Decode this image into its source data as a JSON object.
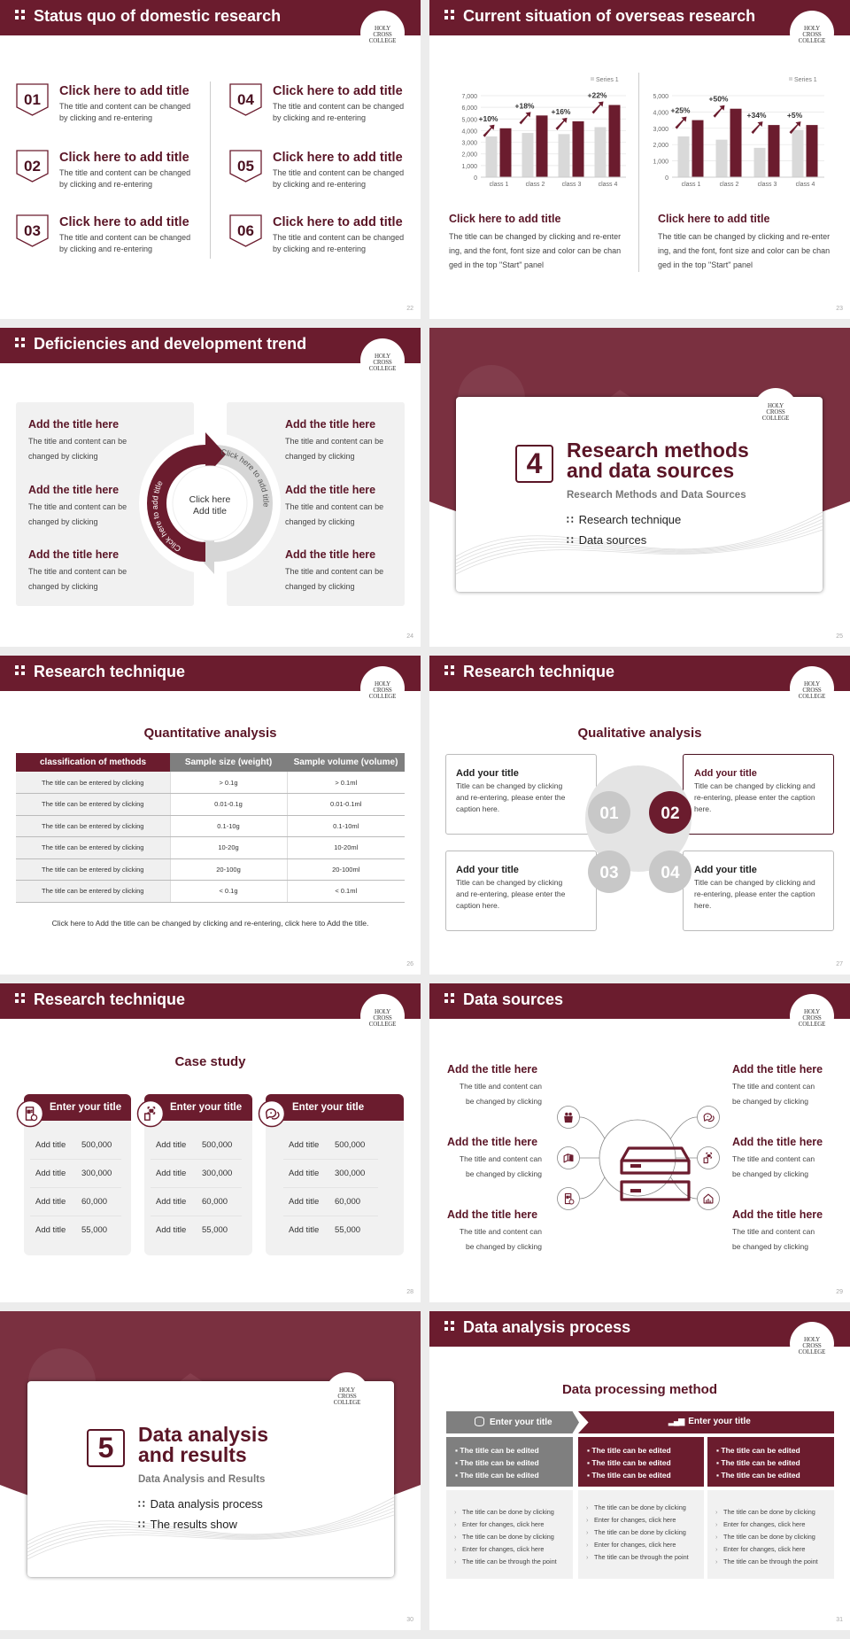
{
  "colors": {
    "maroon": "#6b1c2e",
    "gray": "#7f7f7f",
    "light_gray": "#d9d9d9",
    "panel": "#f1f1f1"
  },
  "logo": {
    "text": "HOLY CROSS COLLEGE"
  },
  "s22": {
    "title": "Status quo of domestic research",
    "page": "22",
    "items": [
      {
        "num": "01",
        "title": "Click here to add title",
        "text": "The title and content can be changed by clicking and re-entering"
      },
      {
        "num": "02",
        "title": "Click here to add title",
        "text": "The title and content can be changed by clicking and re-entering"
      },
      {
        "num": "03",
        "title": "Click here to add title",
        "text": "The title and content can be changed by clicking and re-entering"
      },
      {
        "num": "04",
        "title": "Click here to add title",
        "text": "The title and content can be changed by clicking and re-entering"
      },
      {
        "num": "05",
        "title": "Click here to add title",
        "text": "The title and content can be changed by clicking and re-entering"
      },
      {
        "num": "06",
        "title": "Click here to add title",
        "text": "The title and content can be changed by clicking and re-entering"
      }
    ]
  },
  "s23": {
    "title": "Current situation of overseas research",
    "page": "23",
    "panels": [
      {
        "title": "Click here to add title",
        "text": "The title can be changed by clicking and re-entering, and the font, font size and color can be changed in the top \"Start\" panel"
      },
      {
        "title": "Click here to add title",
        "text": "The title can be changed by clicking and re-entering, and the font, font size and color can be changed in the top \"Start\" panel"
      }
    ]
  },
  "chart_data": [
    {
      "type": "bar",
      "categories": [
        "class 1",
        "class 2",
        "class 3",
        "class 4"
      ],
      "ylim": [
        0,
        7000
      ],
      "yticks": [
        "0",
        "1,000",
        "2,000",
        "3,000",
        "4,000",
        "5,000",
        "6,000",
        "7,000"
      ],
      "ytick_values": [
        0,
        1000,
        2000,
        3000,
        4000,
        5000,
        6000,
        7000
      ],
      "legend": "top-right",
      "grid": true,
      "series": [
        {
          "name": "Series 1",
          "color": "#d9d9d9",
          "values": [
            3500,
            3800,
            3700,
            4300
          ]
        },
        {
          "color": "#6b1c2e",
          "values": [
            4200,
            5300,
            4800,
            6200
          ]
        }
      ],
      "annotations": [
        "+10%",
        "+18%",
        "+16%",
        "+22%"
      ]
    },
    {
      "type": "bar",
      "categories": [
        "class 1",
        "class 2",
        "class 3",
        "class 4"
      ],
      "ylim": [
        0,
        5000
      ],
      "yticks": [
        "0",
        "1,000",
        "2,000",
        "3,000",
        "4,000",
        "5,000"
      ],
      "ytick_values": [
        0,
        1000,
        2000,
        3000,
        4000,
        5000
      ],
      "legend": "top-right",
      "grid": true,
      "series": [
        {
          "name": "Series 1",
          "color": "#d9d9d9",
          "values": [
            2500,
            2300,
            1800,
            2900
          ]
        },
        {
          "color": "#6b1c2e",
          "values": [
            3500,
            4200,
            3200,
            3200
          ]
        }
      ],
      "annotations": [
        "+25%",
        "+50%",
        "+34%",
        "+5%"
      ]
    }
  ],
  "s24": {
    "title": "Deficiencies and development trend",
    "page": "24",
    "items": [
      {
        "title": "Add the title here",
        "text": "The title and content can be changed by clicking"
      },
      {
        "title": "Add the title here",
        "text": "The title and content can be changed by clicking"
      },
      {
        "title": "Add the title here",
        "text": "The title and content can be changed by clicking"
      },
      {
        "title": "Add the title here",
        "text": "The title and content can be changed by clicking"
      },
      {
        "title": "Add the title here",
        "text": "The title and content can be changed by clicking"
      },
      {
        "title": "Add the title here",
        "text": "The title and content can be changed by clicking"
      }
    ],
    "arc_left": "Click here to add title",
    "arc_right": "Click here to add title",
    "center": [
      "Click here",
      "Add title"
    ]
  },
  "s25": {
    "num": "4",
    "title": [
      "Research methods",
      "and data sources"
    ],
    "subtitle": "Research Methods and Data Sources",
    "bullets": [
      "Research technique",
      "Data sources"
    ],
    "page": "25"
  },
  "s26": {
    "title": "Research technique",
    "page": "26",
    "heading": "Quantitative analysis",
    "columns": [
      "classification of methods",
      "Sample size (weight)",
      "Sample volume (volume)"
    ],
    "rows": [
      [
        "The title can be entered by clicking",
        "> 0.1g",
        "> 0.1ml"
      ],
      [
        "The title can be entered by clicking",
        "0.01-0.1g",
        "0.01-0.1ml"
      ],
      [
        "The title can be entered by clicking",
        "0.1-10g",
        "0.1-10ml"
      ],
      [
        "The title can be entered by clicking",
        "10-20g",
        "10-20ml"
      ],
      [
        "The title can be entered by clicking",
        "20-100g",
        "20-100ml"
      ],
      [
        "The title can be entered by clicking",
        "< 0.1g",
        "< 0.1ml"
      ]
    ],
    "caption": "Click here to Add the title can be changed by clicking and re-entering, click here to Add the title."
  },
  "s27": {
    "title": "Research technique",
    "page": "27",
    "heading": "Qualitative analysis",
    "boxes": [
      {
        "num": "01",
        "title": "Add your title",
        "text": "Title can be changed by clicking and re-entering, please enter the caption here."
      },
      {
        "num": "02",
        "title": "Add your title",
        "text": "Title can be changed by clicking and re-entering, please enter the caption here."
      },
      {
        "num": "03",
        "title": "Add your title",
        "text": "Title can be changed by clicking and re-entering, please enter the caption here."
      },
      {
        "num": "04",
        "title": "Add your title",
        "text": "Title can be changed by clicking and re-entering, please enter the caption here."
      }
    ]
  },
  "s28": {
    "title": "Research technique",
    "page": "28",
    "heading": "Case study",
    "cards": [
      {
        "icon": "phone-contact-icon",
        "title": "Enter your title",
        "rows": [
          [
            "Add title",
            "500,000"
          ],
          [
            "Add title",
            "300,000"
          ],
          [
            "Add title",
            "60,000"
          ],
          [
            "Add title",
            "55,000"
          ]
        ]
      },
      {
        "icon": "scan-icon",
        "title": "Enter your title",
        "rows": [
          [
            "Add title",
            "500,000"
          ],
          [
            "Add title",
            "300,000"
          ],
          [
            "Add title",
            "60,000"
          ],
          [
            "Add title",
            "55,000"
          ]
        ]
      },
      {
        "icon": "chat-icon",
        "title": "Enter your title",
        "rows": [
          [
            "Add title",
            "500,000"
          ],
          [
            "Add title",
            "300,000"
          ],
          [
            "Add title",
            "60,000"
          ],
          [
            "Add title",
            "55,000"
          ]
        ]
      }
    ]
  },
  "s29": {
    "title": "Data sources",
    "page": "29",
    "items": [
      {
        "title": "Add the title here",
        "text": [
          "The title and content can",
          "be changed by clicking"
        ],
        "icon": "people-icon"
      },
      {
        "title": "Add the title here",
        "text": [
          "The title and content can",
          "be changed by clicking"
        ],
        "icon": "cube-icon"
      },
      {
        "title": "Add the title here",
        "text": [
          "The title and content can",
          "be changed by clicking"
        ],
        "icon": "phone-contact-icon"
      },
      {
        "title": "Add the title here",
        "text": [
          "The title and content can",
          "be changed by clicking"
        ],
        "icon": "chat-icon"
      },
      {
        "title": "Add the title here",
        "text": [
          "The title and content can",
          "be changed by clicking"
        ],
        "icon": "scan-icon"
      },
      {
        "title": "Add the title here",
        "text": [
          "The title and content can",
          "be changed by clicking"
        ],
        "icon": "house-chart-icon"
      }
    ],
    "center_icon": "database-icon"
  },
  "s30": {
    "num": "5",
    "title": [
      "Data analysis",
      "and results"
    ],
    "subtitle": "Data Analysis and Results",
    "bullets": [
      "Data analysis process",
      "The results show"
    ],
    "page": "30"
  },
  "s31": {
    "title": "Data analysis process",
    "page": "31",
    "heading": "Data processing method",
    "head_left": "Enter your title",
    "head_right": "Enter your title",
    "columns": [
      {
        "top": [
          "The title can be edited",
          "The title can be edited",
          "The title can be edited"
        ],
        "bottom": [
          "The title can be done by clicking",
          "Enter for changes, click here",
          "The title can be done by clicking",
          "Enter for changes, click here",
          "The title can be through the point"
        ]
      },
      {
        "top": [
          "The title can be edited",
          "The title can be edited",
          "The title can be edited"
        ],
        "bottom": [
          "The title can be done by clicking",
          "Enter for changes, click here",
          "The title can be done by clicking",
          "Enter for changes, click here",
          "The title can be through the point"
        ]
      },
      {
        "top": [
          "The title can be edited",
          "The title can be edited",
          "The title can be edited"
        ],
        "bottom": [
          "The title can be done by clicking",
          "Enter for changes, click here",
          "The title can be done by clicking",
          "Enter for changes, click here",
          "The title can be through the point"
        ]
      }
    ]
  }
}
